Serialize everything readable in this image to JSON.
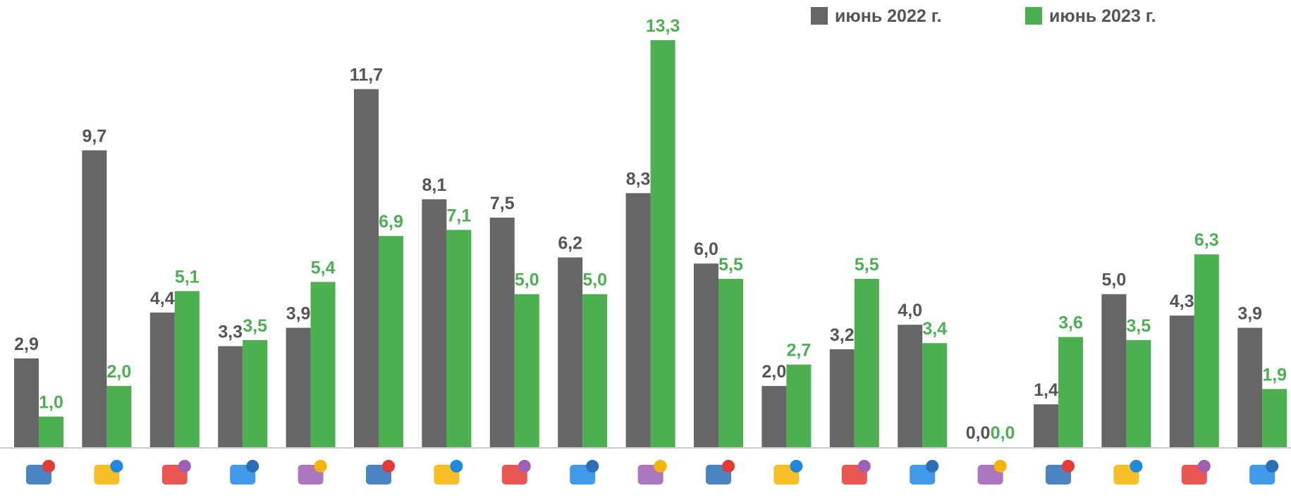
{
  "chart_data": {
    "type": "bar",
    "categories": [
      null,
      null,
      null,
      null,
      null,
      null,
      null,
      null,
      null,
      null,
      null,
      null,
      null,
      null,
      null,
      null,
      null,
      null,
      null
    ],
    "legend": "top-right",
    "series": [
      {
        "name": "июнь 2022 г.",
        "color": "#666666",
        "values": [
          2.9,
          9.7,
          4.4,
          3.3,
          3.9,
          11.7,
          8.1,
          7.5,
          6.2,
          8.3,
          6.0,
          2.0,
          3.2,
          4.0,
          0.0,
          1.4,
          5.0,
          4.3,
          3.9
        ],
        "value_labels": [
          "2,9",
          "9,7",
          "4,4",
          "3,3",
          "3,9",
          "11,7",
          "8,1",
          "7,5",
          "6,2",
          "8,3",
          "6,0",
          "2,0",
          "3,2",
          "4,0",
          "0,0",
          "1,4",
          "5,0",
          "4,3",
          "3,9"
        ]
      },
      {
        "name": "июнь 2023 г.",
        "color": "#4caf50",
        "values": [
          1.0,
          2.0,
          5.1,
          3.5,
          5.4,
          6.9,
          7.1,
          5.0,
          5.0,
          13.3,
          5.5,
          2.7,
          5.5,
          3.4,
          0.0,
          3.6,
          3.5,
          6.3,
          1.9
        ],
        "value_labels": [
          "1,0",
          "2,0",
          "5,1",
          "3,5",
          "5,4",
          "6,9",
          "7,1",
          "5,0",
          "5,0",
          "13,3",
          "5,5",
          "2,7",
          "5,5",
          "3,4",
          "0,0",
          "3,6",
          "3,5",
          "6,3",
          "1,9"
        ]
      }
    ]
  }
}
